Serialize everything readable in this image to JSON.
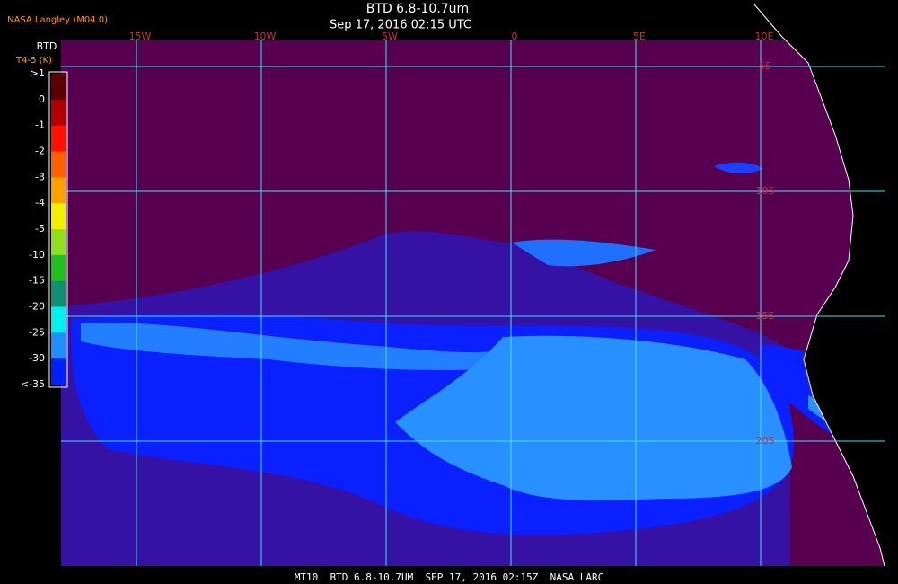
{
  "header": {
    "credit": "NASA Langley (M04.0)",
    "title": "BTD 6.8-10.7um",
    "subtitle": "Sep 17, 2016 02:15 UTC"
  },
  "legend": {
    "title": "BTD",
    "subtitle": "T4-5 (K)",
    "labels": [
      ">1",
      "0",
      "-1",
      "-2",
      "-3",
      "-4",
      "-5",
      "-10",
      "-15",
      "-20",
      "-25",
      "-30",
      "<-35"
    ]
  },
  "map": {
    "longitude_labels": [
      "15W",
      "10W",
      "5W",
      "0",
      "5E",
      "10E"
    ],
    "latitude_labels": [
      "5S",
      "10S",
      "15S",
      "20S"
    ]
  },
  "footer": "MT10  BTD 6.8-10.7UM  SEP 17, 2016 02:15Z  NASA LARC"
}
